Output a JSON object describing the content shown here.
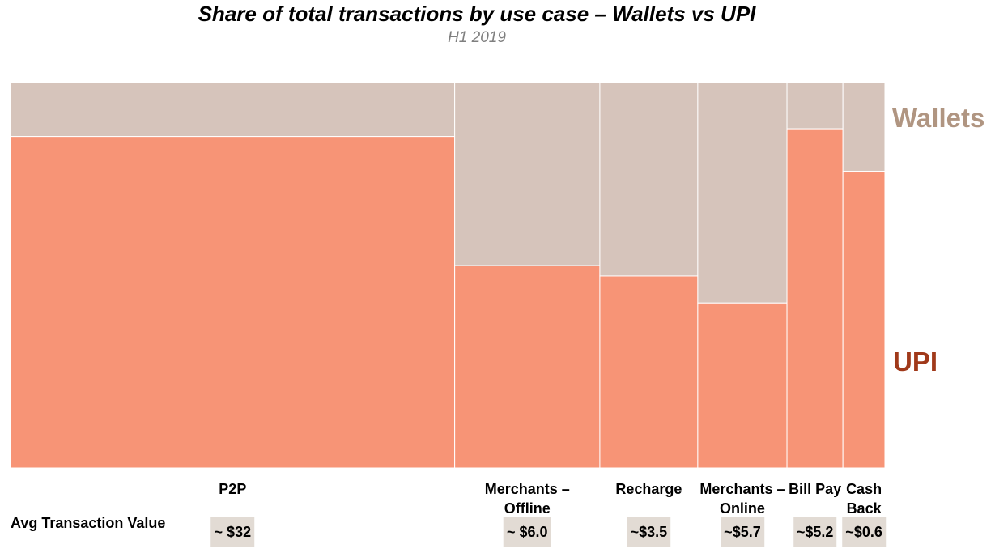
{
  "chart_data": {
    "type": "mosaic",
    "title": "Share of total transactions by use case – Wallets vs UPI",
    "subtitle": "H1 2019",
    "series": [
      {
        "name": "Wallets",
        "color": "#d6c4bb"
      },
      {
        "name": "UPI",
        "color": "#f79476"
      }
    ],
    "series_label_colors": {
      "Wallets": "#b09581",
      "UPI": "#a0391a"
    },
    "categories": [
      {
        "label": "P2P",
        "width_share": 0.508,
        "upi_share": 0.86,
        "avg_value": "~ $32"
      },
      {
        "label": "Merchants – Offline",
        "width_share": 0.166,
        "upi_share": 0.525,
        "avg_value": "~ $6.0"
      },
      {
        "label": "Recharge",
        "width_share": 0.112,
        "upi_share": 0.498,
        "avg_value": "~$3.5"
      },
      {
        "label": "Merchants – Online",
        "width_share": 0.102,
        "upi_share": 0.428,
        "avg_value": "~$5.7"
      },
      {
        "label": "Bill Pay",
        "width_share": 0.064,
        "upi_share": 0.88,
        "avg_value": "~$5.2"
      },
      {
        "label": "Cash Back",
        "width_share": 0.048,
        "upi_share": 0.77,
        "avg_value": "~$0.6"
      }
    ],
    "avg_row_label": "Avg Transaction Value"
  }
}
